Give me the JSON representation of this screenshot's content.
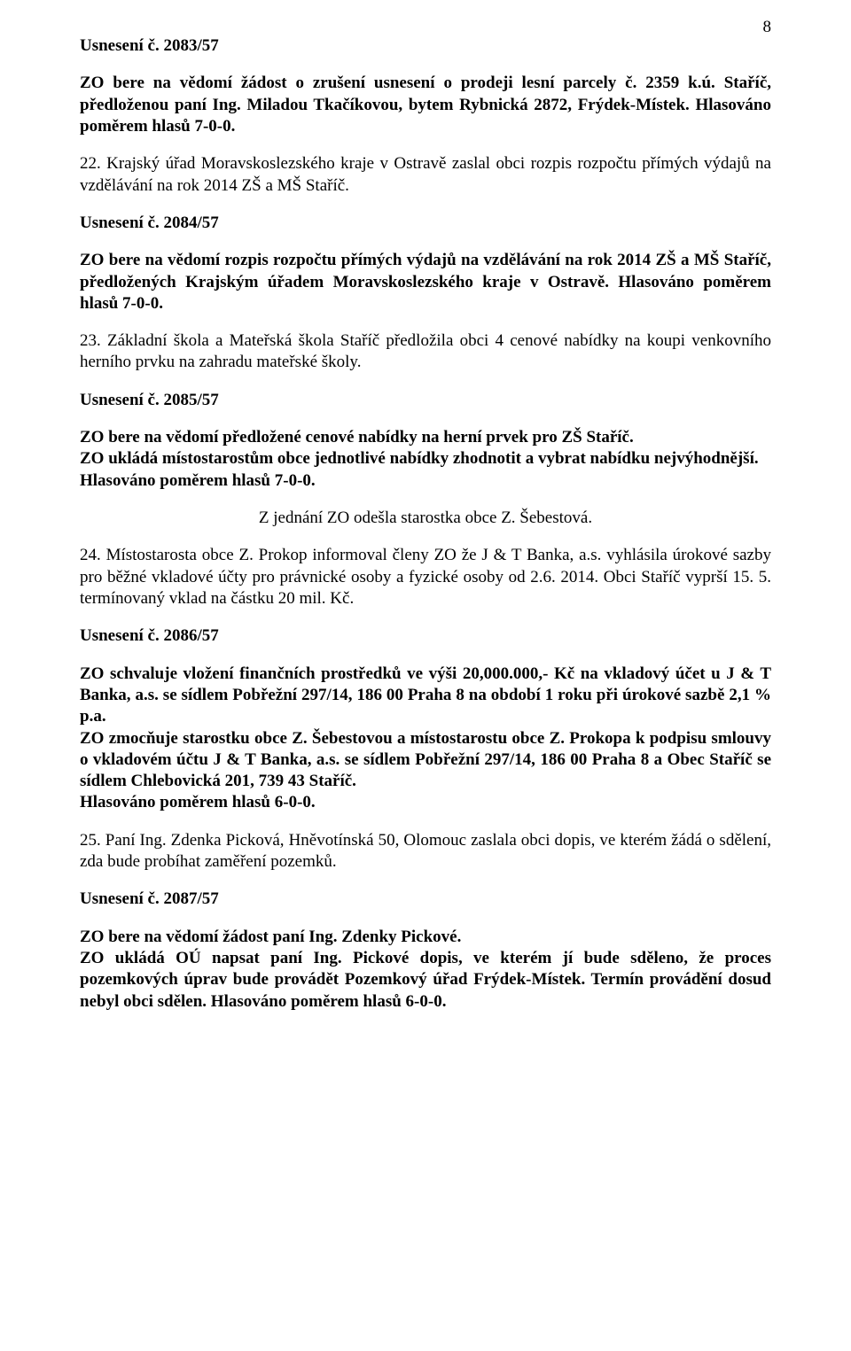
{
  "pageNumber": "8",
  "s1": {
    "heading": "Usnesení č. 2083/57",
    "p1": "ZO bere na vědomí žádost o zrušení usnesení o prodeji lesní parcely č. 2359 k.ú. Staříč, předloženou paní Ing. Miladou Tkačíkovou, bytem Rybnická 2872, Frýdek-Místek. Hlasováno poměrem hlasů 7-0-0."
  },
  "s2": {
    "p1": "22. Krajský úřad Moravskoslezského kraje v Ostravě zaslal obci rozpis rozpočtu přímých výdajů na vzdělávání na rok 2014 ZŠ a MŠ Staříč."
  },
  "s3": {
    "heading": "Usnesení č. 2084/57",
    "p1": "ZO bere na vědomí rozpis rozpočtu přímých výdajů na vzdělávání na rok 2014 ZŠ a MŠ Staříč, předložených Krajským úřadem Moravskoslezského kraje v Ostravě. Hlasováno poměrem hlasů 7-0-0."
  },
  "s4": {
    "p1": "23. Základní škola a Mateřská škola Staříč předložila obci 4 cenové nabídky na koupi venkovního herního prvku na zahradu mateřské školy."
  },
  "s5": {
    "heading": "Usnesení č. 2085/57",
    "p1": "ZO bere na vědomí předložené cenové nabídky na herní prvek pro ZŠ Staříč.",
    "p2": "ZO ukládá místostarostům obce jednotlivé nabídky zhodnotit a vybrat nabídku nejvýhodnější.",
    "p3": "Hlasováno poměrem hlasů 7-0-0."
  },
  "s6": {
    "p1": "Z jednání ZO odešla starostka obce Z. Šebestová."
  },
  "s7": {
    "p1": "24. Místostarosta obce Z. Prokop informoval členy ZO že J & T Banka, a.s. vyhlásila úrokové sazby pro běžné vkladové účty pro právnické osoby a fyzické osoby od 2.6. 2014. Obci Staříč vyprší 15. 5. termínovaný vklad na částku 20 mil. Kč."
  },
  "s8": {
    "heading": "Usnesení č. 2086/57",
    "p1": "ZO schvaluje vložení finančních prostředků ve výši 20,000.000,- Kč na vkladový účet u J & T Banka, a.s. se sídlem  Pobřežní 297/14, 186 00 Praha 8 na období 1 roku při úrokové sazbě 2,1 % p.a.",
    "p2": "ZO zmocňuje starostku obce Z. Šebestovou a místostarostu obce Z. Prokopa k podpisu smlouvy o vkladovém účtu J & T Banka, a.s. se sídlem Pobřežní 297/14, 186 00 Praha 8 a Obec Staříč se sídlem Chlebovická 201, 739 43 Staříč.",
    "p3": "Hlasováno poměrem hlasů 6-0-0."
  },
  "s9": {
    "p1": "25. Paní Ing. Zdenka Picková, Hněvotínská 50, Olomouc zaslala obci dopis, ve kterém žádá o sdělení, zda bude probíhat zaměření pozemků."
  },
  "s10": {
    "heading": "Usnesení č. 2087/57",
    "p1": "ZO bere na vědomí žádost paní Ing. Zdenky Pickové.",
    "p2": "ZO ukládá OÚ napsat paní Ing. Pickové dopis, ve kterém jí bude sděleno, že proces pozemkových úprav bude provádět Pozemkový úřad Frýdek-Místek. Termín provádění dosud nebyl obci sdělen. Hlasováno poměrem hlasů 6-0-0."
  }
}
